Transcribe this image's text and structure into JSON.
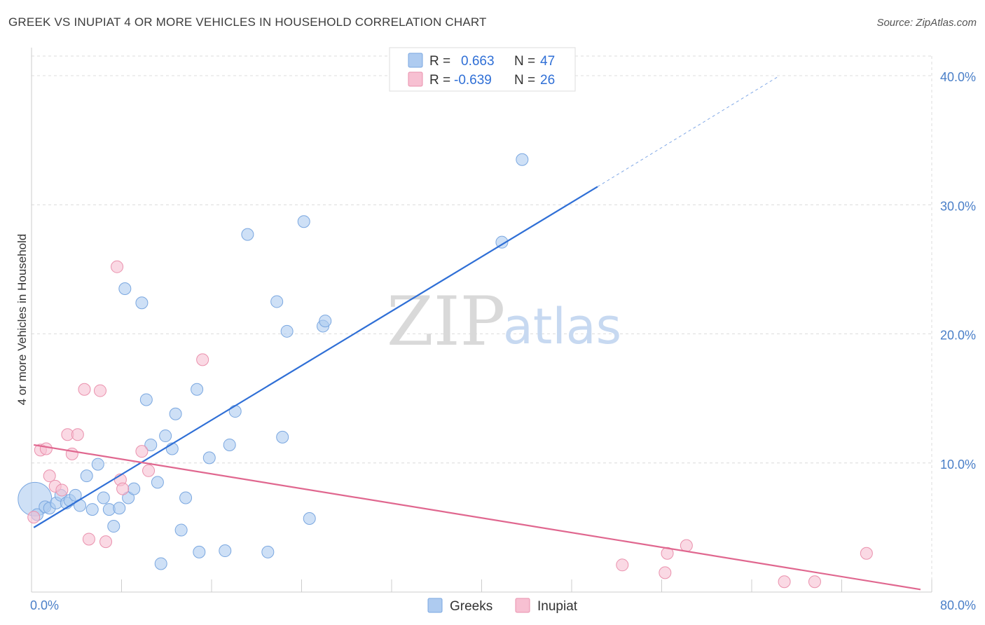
{
  "header": {
    "title": "GREEK VS INUPIAT 4 OR MORE VEHICLES IN HOUSEHOLD CORRELATION CHART",
    "source": "Source: ZipAtlas.com"
  },
  "legend_box": {
    "rows": [
      {
        "r_label": "R =",
        "r_value": "0.663",
        "n_label": "N =",
        "n_value": "47",
        "color": "#aecbf0"
      },
      {
        "r_label": "R =",
        "r_value": "-0.639",
        "n_label": "N =",
        "n_value": "26",
        "color": "#f7c0d2"
      }
    ]
  },
  "bottom_legend": [
    {
      "label": "Greeks",
      "color": "#aecbf0"
    },
    {
      "label": "Inupiat",
      "color": "#f7c0d2"
    }
  ],
  "watermark": {
    "part1": "ZIP",
    "part2": "atlas"
  },
  "chart_data": {
    "type": "scatter",
    "title": "GREEK VS INUPIAT 4 OR MORE VEHICLES IN HOUSEHOLD CORRELATION CHART",
    "xlabel": "",
    "ylabel": "4 or more Vehicles in Household",
    "xlim": [
      0,
      80
    ],
    "ylim": [
      0,
      40
    ],
    "x_tick_labels": [
      "0.0%",
      "80.0%"
    ],
    "y_tick_labels": [
      "10.0%",
      "20.0%",
      "30.0%",
      "40.0%"
    ],
    "y_ticks": [
      10,
      20,
      30,
      40
    ],
    "grid": true,
    "legend_position": "top-center",
    "series": [
      {
        "name": "Greeks",
        "color": "#aecbf0",
        "stroke": "#7aa7e0",
        "trend_color": "#2f6fd6",
        "trend": {
          "x0": 0.2,
          "y0": 5.0,
          "x1": 50.3,
          "y1": 31.4,
          "x_dash_end": 66.3,
          "y_dash_end": 39.9
        },
        "points": [
          [
            0.3,
            7.2,
            "large"
          ],
          [
            0.5,
            6.0
          ],
          [
            1.2,
            6.6
          ],
          [
            1.6,
            6.5
          ],
          [
            2.2,
            6.9
          ],
          [
            2.6,
            7.5
          ],
          [
            3.1,
            6.9
          ],
          [
            3.4,
            7.1
          ],
          [
            3.9,
            7.5
          ],
          [
            4.3,
            6.7
          ],
          [
            4.9,
            9.0
          ],
          [
            5.4,
            6.4
          ],
          [
            5.9,
            9.9
          ],
          [
            6.4,
            7.3
          ],
          [
            6.9,
            6.4
          ],
          [
            7.3,
            5.1
          ],
          [
            7.8,
            6.5
          ],
          [
            8.3,
            23.5
          ],
          [
            8.6,
            7.3
          ],
          [
            9.1,
            8.0
          ],
          [
            9.8,
            22.4
          ],
          [
            10.2,
            14.9
          ],
          [
            10.6,
            11.4
          ],
          [
            11.2,
            8.5
          ],
          [
            11.5,
            2.2
          ],
          [
            11.9,
            12.1
          ],
          [
            12.5,
            11.1
          ],
          [
            12.8,
            13.8
          ],
          [
            13.3,
            4.8
          ],
          [
            13.7,
            7.3
          ],
          [
            14.7,
            15.7
          ],
          [
            14.9,
            3.1
          ],
          [
            15.8,
            10.4
          ],
          [
            17.2,
            3.2
          ],
          [
            17.6,
            11.4
          ],
          [
            18.1,
            14.0
          ],
          [
            19.2,
            27.7
          ],
          [
            21.0,
            3.1
          ],
          [
            21.8,
            22.5
          ],
          [
            22.3,
            12.0
          ],
          [
            22.7,
            20.2
          ],
          [
            24.2,
            28.7
          ],
          [
            24.7,
            5.7
          ],
          [
            25.9,
            20.6
          ],
          [
            26.1,
            21.0
          ],
          [
            41.8,
            27.1
          ],
          [
            43.6,
            33.5
          ]
        ]
      },
      {
        "name": "Inupiat",
        "color": "#f7c0d2",
        "stroke": "#ea91ad",
        "trend_color": "#e0678f",
        "trend": {
          "x0": 0.2,
          "y0": 11.4,
          "x1": 79.0,
          "y1": 0.2
        },
        "points": [
          [
            0.2,
            5.8
          ],
          [
            0.8,
            11.0
          ],
          [
            1.3,
            11.1
          ],
          [
            1.6,
            9.0
          ],
          [
            2.1,
            8.2
          ],
          [
            2.7,
            7.9
          ],
          [
            3.2,
            12.2
          ],
          [
            3.6,
            10.7
          ],
          [
            4.1,
            12.2
          ],
          [
            4.7,
            15.7
          ],
          [
            5.1,
            4.1
          ],
          [
            6.1,
            15.6
          ],
          [
            6.6,
            3.9
          ],
          [
            7.6,
            25.2
          ],
          [
            7.9,
            8.7
          ],
          [
            8.1,
            8.0
          ],
          [
            9.8,
            10.9
          ],
          [
            10.4,
            9.4
          ],
          [
            15.2,
            18.0
          ],
          [
            52.5,
            2.1
          ],
          [
            56.3,
            1.5
          ],
          [
            56.5,
            3.0
          ],
          [
            58.2,
            3.6
          ],
          [
            66.9,
            0.8
          ],
          [
            69.6,
            0.8
          ],
          [
            74.2,
            3.0
          ]
        ]
      }
    ]
  }
}
